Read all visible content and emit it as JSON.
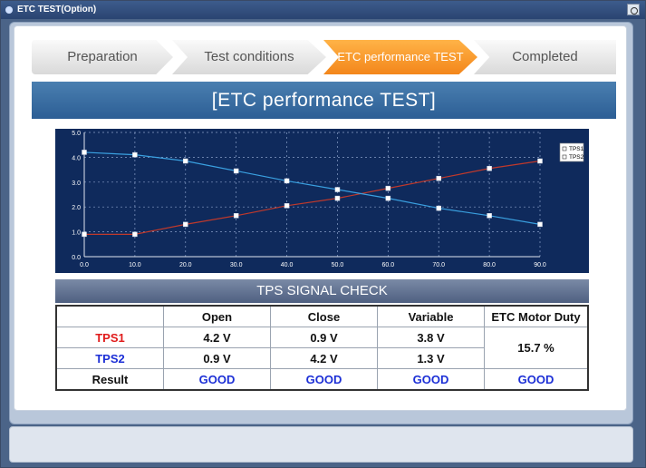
{
  "window": {
    "title": "ETC TEST(Option)"
  },
  "steps": [
    "Preparation",
    "Test conditions",
    "ETC performance TEST",
    "Completed"
  ],
  "active_step": 2,
  "section_title": "[ETC performance TEST]",
  "chart_data": {
    "type": "line",
    "x": [
      0,
      10,
      20,
      30,
      40,
      50,
      60,
      70,
      80,
      90
    ],
    "series": [
      {
        "name": "TPS1",
        "color": "#c0392b",
        "values": [
          0.9,
          0.9,
          1.3,
          1.65,
          2.05,
          2.35,
          2.75,
          3.15,
          3.55,
          3.85
        ]
      },
      {
        "name": "TPS2",
        "color": "#3aa0e0",
        "values": [
          4.2,
          4.1,
          3.85,
          3.45,
          3.05,
          2.7,
          2.35,
          1.95,
          1.65,
          1.3
        ]
      }
    ],
    "xlim": [
      0,
      90
    ],
    "ylim": [
      0,
      5
    ],
    "xticks": [
      "0.0",
      "10.0",
      "20.0",
      "30.0",
      "40.0",
      "50.0",
      "60.0",
      "70.0",
      "80.0",
      "90.0"
    ],
    "yticks": [
      "0.0",
      "1.0",
      "2.0",
      "3.0",
      "4.0",
      "5.0"
    ],
    "grid": true,
    "legend": "top-right",
    "background": "#0f2a5c"
  },
  "tps_check": {
    "title": "TPS SIGNAL CHECK",
    "headers": [
      "",
      "Open",
      "Close",
      "Variable",
      "ETC Motor Duty"
    ],
    "tps1": {
      "label": "TPS1",
      "open": "4.2 V",
      "close": "0.9 V",
      "variable": "3.8 V"
    },
    "tps2": {
      "label": "TPS2",
      "open": "0.9 V",
      "close": "4.2 V",
      "variable": "1.3 V"
    },
    "duty": "15.7 %",
    "result": {
      "label": "Result",
      "open": "GOOD",
      "close": "GOOD",
      "variable": "GOOD",
      "duty": "GOOD"
    }
  }
}
